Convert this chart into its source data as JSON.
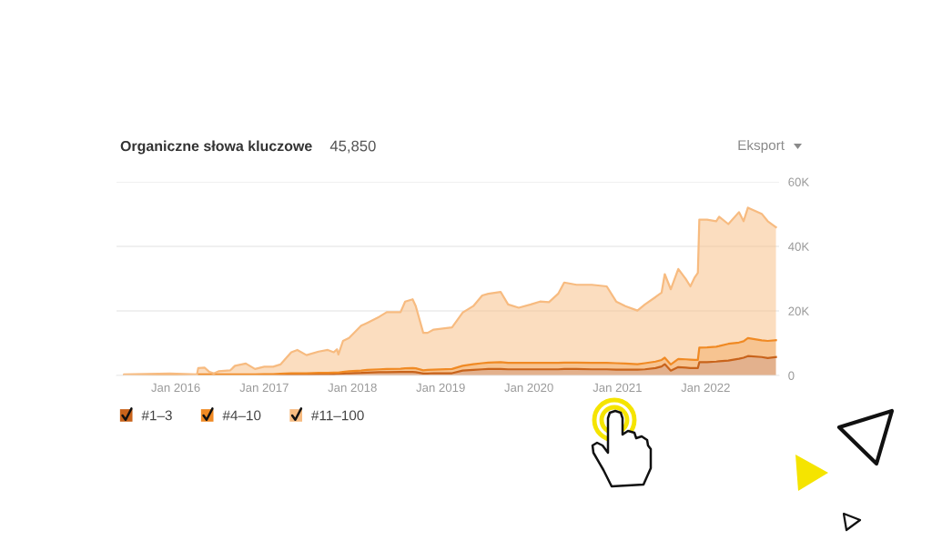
{
  "chart_data": {
    "type": "area",
    "stacked": true,
    "title": "Organiczne słowa kluczowe",
    "subtitle": "45,850",
    "annotations": [
      "Eksport"
    ],
    "x": [
      "2015-06-03",
      "2015-12-08",
      "2016-03-29",
      "2016-04-03",
      "2016-04-30",
      "2016-05-19",
      "2016-06-07",
      "2016-06-26",
      "2016-08-14",
      "2016-09-02",
      "2016-10-17",
      "2016-11-24",
      "2017-01-01",
      "2017-02-07",
      "2017-03-09",
      "2017-04-23",
      "2017-05-18",
      "2017-06-25",
      "2017-08-14",
      "2017-09-21",
      "2017-10-16",
      "2017-10-29",
      "2017-11-04",
      "2017-11-23",
      "2017-12-18",
      "2018-02-06",
      "2018-03-03",
      "2018-04-22",
      "2018-05-23",
      "2018-07-19",
      "2018-08-07",
      "2018-09-07",
      "2018-09-20",
      "2018-10-21",
      "2018-11-08",
      "2018-12-03",
      "2019-02-17",
      "2019-04-02",
      "2019-05-16",
      "2019-06-22",
      "2019-07-17",
      "2019-09-06",
      "2019-10-07",
      "2019-11-20",
      "2020-01-09",
      "2020-02-16",
      "2020-03-24",
      "2020-05-01",
      "2020-05-26",
      "2020-07-16",
      "2020-09-17",
      "2020-11-18",
      "2020-12-27",
      "2021-02-03",
      "2021-03-25",
      "2021-04-25",
      "2021-06-08",
      "2021-07-03",
      "2021-07-16",
      "2021-08-10",
      "2021-09-10",
      "2021-10-11",
      "2021-10-30",
      "2021-11-17",
      "2021-11-30",
      "2021-12-06",
      "2022-01-07",
      "2022-02-14",
      "2022-02-26",
      "2022-04-05",
      "2022-05-19",
      "2022-06-07",
      "2022-06-25",
      "2022-08-21",
      "2022-09-15",
      "2022-10-19"
    ],
    "series": [
      {
        "name": "#1–3",
        "color": "#c8631b",
        "values": [
          100,
          100,
          100,
          100,
          100,
          100,
          100,
          100,
          100,
          100,
          100,
          100,
          200,
          200,
          200,
          300,
          300,
          300,
          400,
          400,
          400,
          500,
          500,
          600,
          700,
          800,
          900,
          1000,
          1000,
          1100,
          1100,
          1100,
          1000,
          600,
          600,
          700,
          700,
          1500,
          1700,
          1900,
          2000,
          2000,
          1900,
          1900,
          1900,
          1900,
          1900,
          1900,
          2000,
          2000,
          1900,
          1900,
          1800,
          1800,
          1800,
          1900,
          2300,
          2800,
          3500,
          1500,
          2600,
          2400,
          2300,
          2300,
          2300,
          4100,
          4100,
          4300,
          4400,
          4600,
          5200,
          5500,
          6000,
          5700,
          5400,
          5700
        ]
      },
      {
        "name": "#4–10",
        "color": "#f08a24",
        "values": [
          100,
          200,
          100,
          200,
          200,
          200,
          200,
          200,
          200,
          200,
          200,
          200,
          200,
          200,
          300,
          400,
          400,
          400,
          400,
          400,
          500,
          400,
          400,
          500,
          600,
          700,
          800,
          900,
          1000,
          1000,
          1100,
          1200,
          1200,
          1000,
          1100,
          1100,
          1300,
          1500,
          1800,
          1900,
          2000,
          2100,
          2000,
          2000,
          2000,
          2000,
          2000,
          2000,
          2000,
          2000,
          2000,
          2000,
          2000,
          1900,
          1700,
          1900,
          2000,
          2000,
          2000,
          1900,
          2500,
          2600,
          2600,
          2500,
          2500,
          4500,
          4600,
          4600,
          4700,
          5200,
          5000,
          5100,
          5600,
          5200,
          5300,
          5200
        ]
      },
      {
        "name": "#11–100",
        "color": "#f7bb80",
        "values": [
          100,
          300,
          100,
          2000,
          2100,
          800,
          300,
          1000,
          1300,
          2700,
          3400,
          1700,
          2300,
          2300,
          2900,
          6500,
          7200,
          5600,
          6600,
          7100,
          6300,
          7200,
          5600,
          9600,
          10300,
          13900,
          14600,
          16300,
          17600,
          17500,
          20700,
          21300,
          19300,
          11600,
          11500,
          12400,
          12900,
          16500,
          18000,
          21000,
          21300,
          21800,
          18100,
          17100,
          18100,
          19000,
          18800,
          21400,
          24800,
          24100,
          24200,
          23700,
          19100,
          17800,
          16600,
          18200,
          20000,
          20900,
          25900,
          23300,
          27900,
          24900,
          22700,
          25600,
          27000,
          39700,
          39600,
          38900,
          40100,
          37100,
          40400,
          37200,
          40400,
          39200,
          37100,
          35000
        ]
      }
    ],
    "xlim": [
      "2015-05",
      "2022-11"
    ],
    "xticks": [
      {
        "value": "2016-01",
        "label": "Jan 2016"
      },
      {
        "value": "2017-01",
        "label": "Jan 2017"
      },
      {
        "value": "2018-01",
        "label": "Jan 2018"
      },
      {
        "value": "2019-01",
        "label": "Jan 2019"
      },
      {
        "value": "2020-01",
        "label": "Jan 2020"
      },
      {
        "value": "2021-01",
        "label": "Jan 2021"
      },
      {
        "value": "2022-01",
        "label": "Jan 2022"
      }
    ],
    "ylim": [
      0,
      60000
    ],
    "yticks": [
      0,
      {
        "value": 20000,
        "label": "20K"
      },
      {
        "value": 40000,
        "label": "40K"
      },
      {
        "value": 60000,
        "label": "60K"
      }
    ],
    "grid": "y",
    "legend": "bottom left"
  }
}
